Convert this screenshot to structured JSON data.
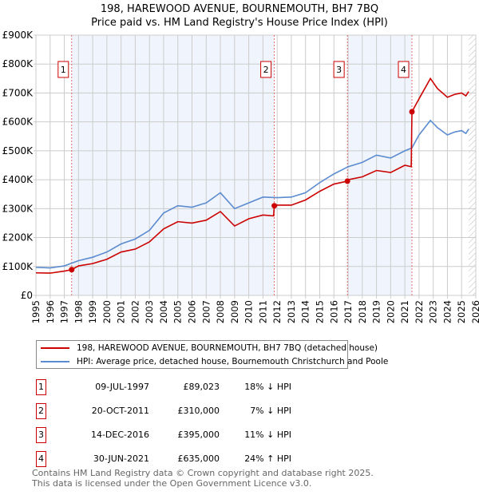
{
  "chart_data": {
    "type": "line",
    "title": "198, HAREWOOD AVENUE, BOURNEMOUTH, BH7 7BQ",
    "subtitle": "Price paid vs. HM Land Registry's House Price Index (HPI)",
    "xlim": [
      1995,
      2026
    ],
    "ylim": [
      0,
      900000
    ],
    "x_ticks": [
      "1995",
      "1996",
      "1997",
      "1998",
      "1999",
      "2000",
      "2001",
      "2002",
      "2003",
      "2004",
      "2005",
      "2006",
      "2007",
      "2008",
      "2009",
      "2010",
      "2011",
      "2012",
      "2013",
      "2014",
      "2015",
      "2016",
      "2017",
      "2018",
      "2019",
      "2020",
      "2021",
      "2022",
      "2023",
      "2024",
      "2025",
      "2026"
    ],
    "y_ticks": [
      {
        "v": 0,
        "label": "£0"
      },
      {
        "v": 100000,
        "label": "£100K"
      },
      {
        "v": 200000,
        "label": "£200K"
      },
      {
        "v": 300000,
        "label": "£300K"
      },
      {
        "v": 400000,
        "label": "£400K"
      },
      {
        "v": 500000,
        "label": "£500K"
      },
      {
        "v": 600000,
        "label": "£600K"
      },
      {
        "v": 700000,
        "label": "£700K"
      },
      {
        "v": 800000,
        "label": "£800K"
      },
      {
        "v": 900000,
        "label": "£900K"
      }
    ],
    "grid": true,
    "shaded_ranges": [
      [
        1997.52,
        2011.8
      ],
      [
        2016.95,
        2021.5
      ]
    ],
    "projection_from": 2025.5,
    "series": [
      {
        "name": "198, HAREWOOD AVENUE, BOURNEMOUTH, BH7 7BQ (detached house)",
        "color": "#cc0000",
        "x": [
          1995,
          1996,
          1997,
          1997.52,
          1998,
          1999,
          2000,
          2001,
          2002,
          2003,
          2004,
          2005,
          2006,
          2007,
          2008,
          2009,
          2010,
          2011,
          2011.75,
          2011.8,
          2012,
          2013,
          2014,
          2015,
          2016,
          2016.95,
          2017,
          2018,
          2019,
          2020,
          2021,
          2021.45,
          2021.5,
          2022,
          2022.8,
          2023.3,
          2024,
          2024.5,
          2025,
          2025.3,
          2025.5
        ],
        "y": [
          78000,
          77000,
          84000,
          89023,
          102000,
          110000,
          125000,
          150000,
          160000,
          185000,
          230000,
          255000,
          250000,
          260000,
          290000,
          240000,
          265000,
          278000,
          275000,
          310000,
          312000,
          312000,
          330000,
          360000,
          385000,
          395000,
          400000,
          410000,
          432000,
          425000,
          450000,
          445000,
          635000,
          680000,
          750000,
          715000,
          685000,
          695000,
          700000,
          690000,
          705000
        ]
      },
      {
        "name": "HPI: Average price, detached house, Bournemouth Christchurch and Poole",
        "color": "#5b8bd0",
        "x": [
          1995,
          1996,
          1997,
          1998,
          1999,
          2000,
          2001,
          2002,
          2003,
          2004,
          2005,
          2006,
          2007,
          2008,
          2009,
          2010,
          2011,
          2012,
          2013,
          2014,
          2015,
          2016,
          2017,
          2018,
          2019,
          2020,
          2021,
          2021.5,
          2022,
          2022.8,
          2023.3,
          2024,
          2024.5,
          2025,
          2025.3,
          2025.5
        ],
        "y": [
          97000,
          95000,
          102000,
          120000,
          132000,
          150000,
          178000,
          195000,
          225000,
          285000,
          310000,
          305000,
          320000,
          355000,
          300000,
          320000,
          340000,
          338000,
          340000,
          355000,
          390000,
          420000,
          445000,
          460000,
          485000,
          475000,
          500000,
          510000,
          555000,
          605000,
          580000,
          555000,
          565000,
          570000,
          560000,
          575000
        ]
      }
    ],
    "sales": [
      {
        "num": "1",
        "x": 1997.52,
        "price": 89023,
        "date": "09-JUL-1997",
        "price_label": "£89,023",
        "hpi": "18% ↓ HPI"
      },
      {
        "num": "2",
        "x": 2011.8,
        "price": 310000,
        "date": "20-OCT-2011",
        "price_label": "£310,000",
        "hpi": "7% ↓ HPI"
      },
      {
        "num": "3",
        "x": 2016.95,
        "price": 395000,
        "date": "14-DEC-2016",
        "price_label": "£395,000",
        "hpi": "11% ↓ HPI"
      },
      {
        "num": "4",
        "x": 2021.5,
        "price": 635000,
        "date": "30-JUN-2021",
        "price_label": "£635,000",
        "hpi": "24% ↑ HPI"
      }
    ]
  },
  "legend": {
    "property": "198, HAREWOOD AVENUE, BOURNEMOUTH, BH7 7BQ (detached house)",
    "hpi": "HPI: Average price, detached house, Bournemouth Christchurch and Poole"
  },
  "footer": {
    "line1": "Contains HM Land Registry data © Crown copyright and database right 2025.",
    "line2": "This data is licensed under the Open Government Licence v3.0."
  }
}
